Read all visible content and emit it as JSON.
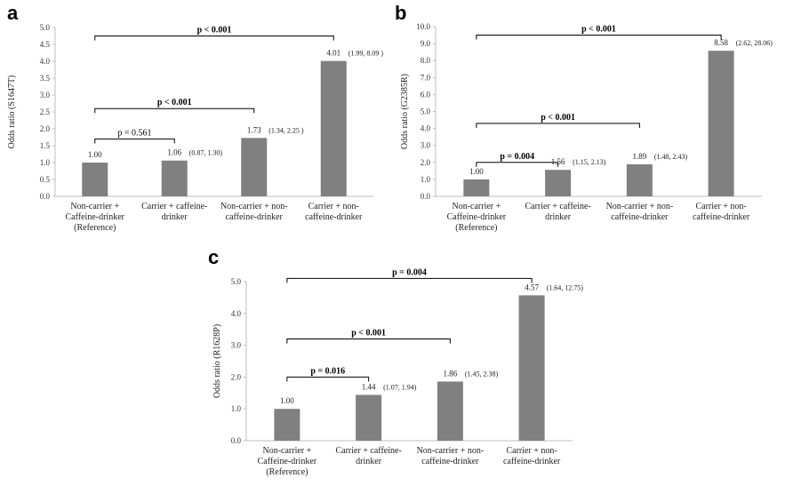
{
  "figure": {
    "colors": {
      "bar": "#808080",
      "axis": "#bfbfbf",
      "bracket": "#000000",
      "text": "#222222"
    }
  },
  "chart_data": [
    {
      "type": "bar",
      "panel": "a",
      "ylabel": "Odds ratio (S1647T)",
      "ylim": [
        0,
        5.0
      ],
      "ytick_step": 0.5,
      "ytick_decimals": 1,
      "categories": [
        [
          "Non-carrier +",
          "Caffeine-drinker",
          "(Reference)"
        ],
        [
          "Carrier + caffeine-",
          "drinker"
        ],
        [
          "Non-carrier + non-",
          "caffeine-drinker"
        ],
        [
          "Carrier + non-",
          "caffeine-drinker"
        ]
      ],
      "values": [
        1.0,
        1.06,
        1.73,
        4.01
      ],
      "value_labels": [
        "1.00",
        "1.06",
        "1.73",
        "4.01"
      ],
      "ci_labels": [
        "",
        "(0.87, 1.30)",
        "(1.34, 2.25 )",
        "(1.99, 8.09 )"
      ],
      "comparisons": [
        {
          "from": 0,
          "to": 1,
          "label": "p = 0.561",
          "bold": false,
          "level": 1.7
        },
        {
          "from": 0,
          "to": 2,
          "label": "p < 0.001",
          "bold": true,
          "level": 2.6
        },
        {
          "from": 0,
          "to": 3,
          "label": "p < 0.001",
          "bold": true,
          "level": 4.75
        }
      ]
    },
    {
      "type": "bar",
      "panel": "b",
      "ylabel": "Odds ratio (G2385R)",
      "ylim": [
        0,
        10.0
      ],
      "ytick_step": 1.0,
      "ytick_decimals": 1,
      "categories": [
        [
          "Non-carrier +",
          "Caffeine-drinker",
          "(Reference)"
        ],
        [
          "Carrier + caffeine-",
          "drinker"
        ],
        [
          "Non-carrier + non-",
          "caffeine-drinker"
        ],
        [
          "Carrier + non-",
          "caffeine-drinker"
        ]
      ],
      "values": [
        1.0,
        1.56,
        1.89,
        8.58
      ],
      "value_labels": [
        "1.00",
        "1.56",
        "1.89",
        "8.58"
      ],
      "ci_labels": [
        "",
        "(1.15, 2.13)",
        "(1.48, 2.43)",
        "(2.62, 28.06)"
      ],
      "comparisons": [
        {
          "from": 0,
          "to": 1,
          "label": "p = 0.004",
          "bold": true,
          "level": 2.0
        },
        {
          "from": 0,
          "to": 2,
          "label": "p < 0.001",
          "bold": true,
          "level": 4.3
        },
        {
          "from": 0,
          "to": 3,
          "label": "p < 0.001",
          "bold": true,
          "level": 9.5
        }
      ]
    },
    {
      "type": "bar",
      "panel": "c",
      "ylabel": "Odds ratio (R1628P)",
      "ylim": [
        0,
        5.0
      ],
      "ytick_step": 1.0,
      "ytick_decimals": 1,
      "categories": [
        [
          "Non-carrier +",
          "Caffeine-drinker",
          "(Reference)"
        ],
        [
          "Carrier + caffeine-",
          "drinker"
        ],
        [
          "Non-carrier + non-",
          "caffeine-drinker"
        ],
        [
          "Carrier + non-",
          "caffeine-drinker"
        ]
      ],
      "values": [
        1.0,
        1.44,
        1.86,
        4.57
      ],
      "value_labels": [
        "1.00",
        "1.44",
        "1.86",
        "4.57"
      ],
      "ci_labels": [
        "",
        "(1.07, 1.94)",
        "(1.45, 2.38)",
        "(1.64, 12.75)"
      ],
      "comparisons": [
        {
          "from": 0,
          "to": 1,
          "label": "p = 0.016",
          "bold": true,
          "level": 2.0
        },
        {
          "from": 0,
          "to": 2,
          "label": "p < 0.001",
          "bold": true,
          "level": 3.2
        },
        {
          "from": 0,
          "to": 3,
          "label": "p = 0.004",
          "bold": true,
          "level": 5.1
        }
      ]
    }
  ]
}
